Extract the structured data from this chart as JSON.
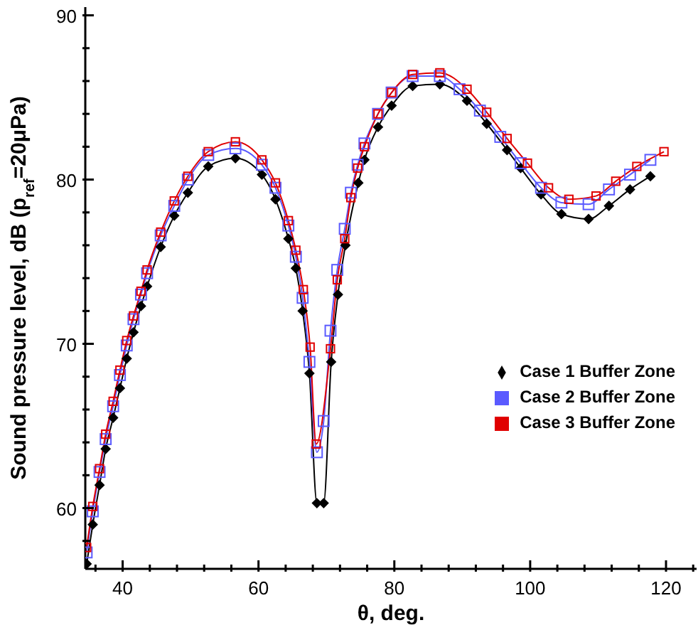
{
  "chart_data": {
    "type": "line",
    "xlabel": "θ, deg.",
    "ylabel": "Sound pressure level, dB (p$_{ref}$=20μPa)",
    "xlim": [
      34.5,
      124.5
    ],
    "ylim": [
      56.3,
      90.5
    ],
    "xticks": [
      {
        "value": 36,
        "label": null
      },
      40,
      {
        "value": 44,
        "label": null
      },
      {
        "value": 48,
        "label": null
      },
      {
        "value": 52,
        "label": null
      },
      {
        "value": 56,
        "label": null
      },
      60,
      {
        "value": 64,
        "label": null
      },
      {
        "value": 68,
        "label": null
      },
      {
        "value": 72,
        "label": null
      },
      {
        "value": 76,
        "label": null
      },
      80,
      {
        "value": 84,
        "label": null
      },
      {
        "value": 88,
        "label": null
      },
      {
        "value": 92,
        "label": null
      },
      {
        "value": 96,
        "label": null
      },
      100,
      {
        "value": 104,
        "label": null
      },
      {
        "value": 108,
        "label": null
      },
      {
        "value": 112,
        "label": null
      },
      {
        "value": 116,
        "label": null
      },
      120,
      {
        "value": 124,
        "label": null
      }
    ],
    "yticks": [
      {
        "value": 58,
        "label": null
      },
      60,
      {
        "value": 62,
        "label": null
      },
      {
        "value": 64,
        "label": null
      },
      {
        "value": 66,
        "label": null
      },
      {
        "value": 68,
        "label": null
      },
      70,
      {
        "value": 72,
        "label": null
      },
      {
        "value": 74,
        "label": null
      },
      {
        "value": 76,
        "label": null
      },
      {
        "value": 78,
        "label": null
      },
      80,
      {
        "value": 82,
        "label": null
      },
      {
        "value": 84,
        "label": null
      },
      {
        "value": 86,
        "label": null
      },
      {
        "value": 88,
        "label": null
      },
      90
    ],
    "grid": false,
    "legend": "right",
    "line_style": "solid",
    "series": [
      {
        "name": "Case 1 Buffer Zone",
        "color": "#000000",
        "marker": "diamond",
        "x": [
          34.7,
          35.6,
          36.6,
          37.5,
          38.6,
          39.6,
          40.6,
          41.6,
          42.7,
          43.6,
          45.6,
          47.6,
          49.6,
          52.6,
          56.6,
          60.5,
          62.5,
          64.4,
          65.5,
          66.5,
          67.5,
          68.6,
          69.6,
          70.7,
          71.7,
          72.8,
          74.7,
          75.6,
          77.6,
          79.6,
          82.7,
          86.7,
          90.7,
          93.6,
          96.6,
          98.6,
          101.6,
          104.6,
          108.6,
          111.6,
          114.7,
          117.7
        ],
        "values": [
          56.6,
          59.0,
          61.4,
          63.6,
          65.5,
          67.3,
          69.1,
          70.7,
          72.3,
          73.5,
          75.9,
          77.8,
          79.2,
          80.8,
          81.3,
          80.3,
          78.8,
          76.4,
          74.6,
          72.0,
          68.2,
          60.3,
          60.3,
          68.9,
          73.0,
          76.0,
          79.8,
          81.2,
          83.2,
          84.5,
          85.7,
          85.8,
          84.8,
          83.4,
          81.8,
          80.7,
          79.1,
          77.9,
          77.6,
          78.4,
          79.4,
          80.2
        ]
      },
      {
        "name": "Case 2 Buffer Zone",
        "color": "#5a5aff",
        "marker": "square",
        "x": [
          34.7,
          35.6,
          36.6,
          37.5,
          38.6,
          39.6,
          40.6,
          41.6,
          42.7,
          43.6,
          45.6,
          47.6,
          49.6,
          52.6,
          56.6,
          60.5,
          62.5,
          64.4,
          65.5,
          66.5,
          67.5,
          68.6,
          69.6,
          70.6,
          71.6,
          72.7,
          73.6,
          74.6,
          75.6,
          77.6,
          79.6,
          82.7,
          86.7,
          89.6,
          92.6,
          95.6,
          98.6,
          101.6,
          104.6,
          108.6,
          111.6,
          114.7,
          117.7
        ],
        "values": [
          57.3,
          59.8,
          62.2,
          64.2,
          66.2,
          68.1,
          69.9,
          71.5,
          73.0,
          74.3,
          76.6,
          78.4,
          80.0,
          81.5,
          81.9,
          80.9,
          79.5,
          77.2,
          75.3,
          72.8,
          68.9,
          63.4,
          65.3,
          70.8,
          74.5,
          77.0,
          79.2,
          80.9,
          82.2,
          84.0,
          85.3,
          86.3,
          86.3,
          85.5,
          84.2,
          82.6,
          81.0,
          79.5,
          78.6,
          78.5,
          79.4,
          80.3,
          81.2
        ]
      },
      {
        "name": "Case 3 Buffer Zone",
        "color": "#e00000",
        "marker": "square",
        "x": [
          34.7,
          35.6,
          36.6,
          37.5,
          38.6,
          39.6,
          40.6,
          41.6,
          42.7,
          43.6,
          45.6,
          47.6,
          49.6,
          52.6,
          56.6,
          60.5,
          62.5,
          64.4,
          65.5,
          66.6,
          67.6,
          68.5,
          70.6,
          71.6,
          72.7,
          73.6,
          74.6,
          75.6,
          77.6,
          79.6,
          82.7,
          86.7,
          90.7,
          93.6,
          96.6,
          99.6,
          102.7,
          105.7,
          109.7,
          112.6,
          115.7,
          119.7
        ],
        "values": [
          57.6,
          60.1,
          62.4,
          64.5,
          66.5,
          68.4,
          70.2,
          71.7,
          73.2,
          74.5,
          76.8,
          78.7,
          80.2,
          81.7,
          82.3,
          81.2,
          79.8,
          77.5,
          75.7,
          73.3,
          69.8,
          63.9,
          69.7,
          73.9,
          76.4,
          78.9,
          80.7,
          82.0,
          84.0,
          85.3,
          86.4,
          86.5,
          85.5,
          84.1,
          82.5,
          81.0,
          79.5,
          78.8,
          79.0,
          79.9,
          80.8,
          81.7
        ]
      }
    ]
  }
}
